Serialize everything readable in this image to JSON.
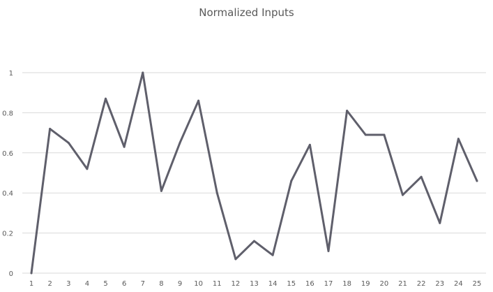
{
  "chart_data": {
    "type": "line",
    "title": "Normalized Inputs",
    "xlabel": "",
    "ylabel": "",
    "categories": [
      "1",
      "2",
      "3",
      "4",
      "5",
      "6",
      "7",
      "8",
      "9",
      "10",
      "11",
      "12",
      "13",
      "14",
      "15",
      "16",
      "17",
      "18",
      "19",
      "20",
      "21",
      "22",
      "23",
      "24",
      "25"
    ],
    "series": [
      {
        "values": [
          0,
          0.72,
          0.65,
          0.52,
          0.87,
          0.63,
          1.0,
          0.41,
          0.65,
          0.86,
          0.4,
          0.07,
          0.16,
          0.09,
          0.46,
          0.64,
          0.11,
          0.81,
          0.69,
          0.69,
          0.39,
          0.48,
          0.25,
          0.67,
          0.46
        ],
        "color": "#5f5f6b"
      }
    ],
    "yticks": [
      "0",
      "0.2",
      "0.4",
      "0.6",
      "0.8",
      "1"
    ],
    "ylim": [
      0,
      1
    ],
    "grid": true,
    "legend": "none",
    "colors": {
      "line": "#5f5f6b",
      "grid": "#d9d9d9",
      "text": "#595959"
    }
  }
}
